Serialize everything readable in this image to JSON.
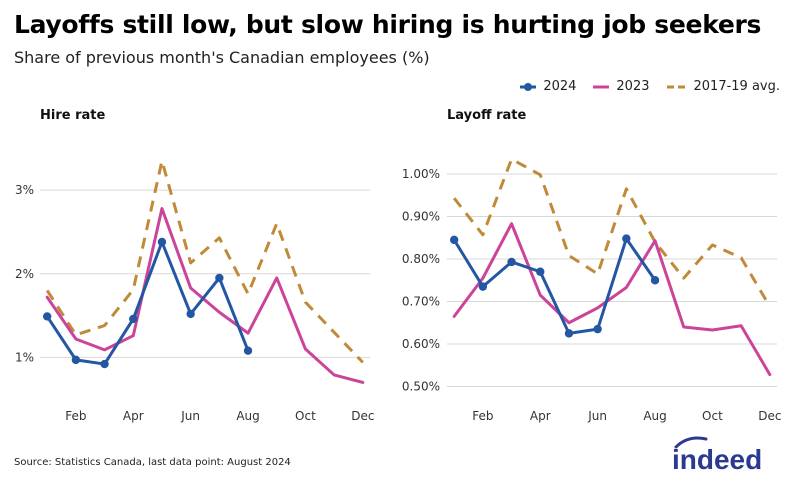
{
  "header": {
    "title": "Layoffs still low, but slow hiring is hurting job seekers",
    "subtitle": "Share of previous month's Canadian employees (%)"
  },
  "legend": [
    {
      "label": "2024",
      "color": "#2457a3",
      "style": "solid-marker"
    },
    {
      "label": "2023",
      "color": "#cc4499",
      "style": "solid"
    },
    {
      "label": "2017-19 avg.",
      "color": "#c08a38",
      "style": "dashed"
    }
  ],
  "footer": {
    "source": "Source: Statistics Canada, last data point: August 2024",
    "logo_text": "indeed",
    "logo_color": "#2b3990"
  },
  "chart_data": [
    {
      "type": "line",
      "title": "Hire rate",
      "months": [
        1,
        2,
        3,
        4,
        5,
        6,
        7,
        8,
        9,
        10,
        11,
        12
      ],
      "xticks": [
        2,
        4,
        6,
        8,
        10,
        12
      ],
      "xtick_labels": [
        "Feb",
        "Apr",
        "Jun",
        "Aug",
        "Oct",
        "Dec"
      ],
      "xlim": [
        0.75,
        12.25
      ],
      "ylim": [
        0.55,
        3.6
      ],
      "yticks": [
        1,
        2,
        3
      ],
      "ytick_labels": [
        "1%",
        "2%",
        "3%"
      ],
      "series": [
        {
          "name": "2024",
          "values": [
            1.49,
            0.97,
            0.92,
            1.46,
            2.38,
            1.52,
            1.95,
            1.08
          ]
        },
        {
          "name": "2023",
          "values": [
            1.72,
            1.22,
            1.09,
            1.26,
            2.78,
            1.83,
            1.54,
            1.29,
            1.95,
            1.1,
            0.79,
            0.7
          ]
        },
        {
          "name": "2017-19 avg.",
          "values": [
            1.8,
            1.27,
            1.38,
            1.81,
            3.35,
            2.13,
            2.43,
            1.76,
            2.6,
            1.66,
            1.3,
            0.94
          ]
        }
      ]
    },
    {
      "type": "line",
      "title": "Layoff rate",
      "months": [
        1,
        2,
        3,
        4,
        5,
        6,
        7,
        8,
        9,
        10,
        11,
        12
      ],
      "xticks": [
        2,
        4,
        6,
        8,
        10,
        12
      ],
      "xtick_labels": [
        "Feb",
        "Apr",
        "Jun",
        "Aug",
        "Oct",
        "Dec"
      ],
      "xlim": [
        0.75,
        12.25
      ],
      "ylim": [
        0.48,
        1.08
      ],
      "yticks": [
        0.5,
        0.6,
        0.7,
        0.8,
        0.9,
        1.0
      ],
      "ytick_labels": [
        "0.50%",
        "0.60%",
        "0.70%",
        "0.80%",
        "0.90%",
        "1.00%"
      ],
      "series": [
        {
          "name": "2024",
          "values": [
            0.845,
            0.735,
            0.793,
            0.77,
            0.625,
            0.635,
            0.848,
            0.75
          ]
        },
        {
          "name": "2023",
          "values": [
            0.665,
            0.755,
            0.883,
            0.715,
            0.65,
            0.685,
            0.733,
            0.843,
            0.64,
            0.633,
            0.643,
            0.528
          ]
        },
        {
          "name": "2017-19 avg.",
          "values": [
            0.943,
            0.857,
            1.035,
            0.998,
            0.808,
            0.765,
            0.965,
            0.84,
            0.755,
            0.833,
            0.803,
            0.688
          ]
        }
      ]
    }
  ]
}
